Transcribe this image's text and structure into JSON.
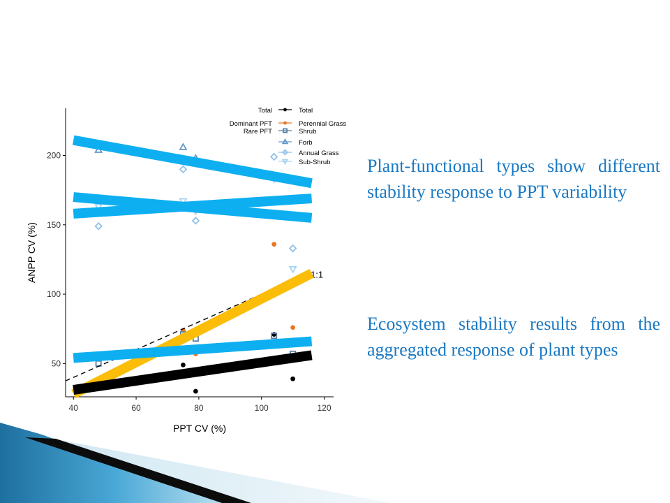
{
  "slide": {
    "paragraphs": [
      "Plant-functional types show different stability response to PPT variability",
      "Ecosystem stability results from the aggregated response of plant types"
    ],
    "text_color": "#1a78c2"
  },
  "chart_data": {
    "type": "scatter",
    "xlabel": "PPT CV (%)",
    "ylabel": "ANPP CV (%)",
    "xlim": [
      37.5,
      123
    ],
    "ylim": [
      26,
      234
    ],
    "xticks": [
      40,
      60,
      80,
      100,
      120
    ],
    "yticks": [
      50,
      100,
      150,
      200
    ],
    "grid": false,
    "legend_position": "top-right",
    "legend_groups": [
      {
        "label": "Total",
        "entries": [
          "Total"
        ]
      },
      {
        "label": "Dominant PFT",
        "entries": [
          "Perennial Grass"
        ]
      },
      {
        "label": "Rare PFT",
        "entries": [
          "Shrub",
          "Forb",
          "Annual Grass",
          "Sub-Shrub"
        ]
      }
    ],
    "series": [
      {
        "name": "Total",
        "marker": "circle-filled",
        "color": "#000000",
        "points": [
          [
            75,
            49
          ],
          [
            79,
            30
          ],
          [
            104,
            71
          ],
          [
            110,
            39
          ]
        ]
      },
      {
        "name": "Perennial Grass",
        "marker": "circle-filled",
        "color": "#e87722",
        "points": [
          [
            75,
            74
          ],
          [
            79,
            57
          ],
          [
            104,
            136
          ],
          [
            110,
            76
          ]
        ]
      },
      {
        "name": "Shrub",
        "marker": "square-open",
        "color": "#5a7fa8",
        "points": [
          [
            48,
            50
          ],
          [
            75,
            71
          ],
          [
            79,
            68
          ],
          [
            104,
            70
          ],
          [
            110,
            57
          ]
        ]
      },
      {
        "name": "Forb",
        "marker": "triangle-up-open",
        "color": "#6699cc",
        "points": [
          [
            48,
            204
          ],
          [
            75,
            206
          ],
          [
            79,
            198
          ],
          [
            104,
            185
          ],
          [
            110,
            183
          ]
        ]
      },
      {
        "name": "Annual Grass",
        "marker": "diamond-open",
        "color": "#8fc1e8",
        "points": [
          [
            48,
            149
          ],
          [
            75,
            190
          ],
          [
            79,
            153
          ],
          [
            104,
            199
          ],
          [
            110,
            133
          ]
        ]
      },
      {
        "name": "Sub-Shrub",
        "marker": "triangle-down-open",
        "color": "#a8d3f2",
        "points": [
          [
            48,
            163
          ],
          [
            75,
            167
          ],
          [
            79,
            160
          ],
          [
            104,
            183
          ],
          [
            110,
            118
          ]
        ]
      }
    ],
    "fit_lines": [
      {
        "for": "Forb",
        "color": "#0eaff0",
        "x": [
          40,
          116
        ],
        "y": [
          211,
          180
        ]
      },
      {
        "for": "Sub-Shrub",
        "color": "#0eaff0",
        "x": [
          40,
          116
        ],
        "y": [
          170,
          155
        ]
      },
      {
        "for": "Annual Grass",
        "color": "#0eaff0",
        "x": [
          40,
          116
        ],
        "y": [
          158,
          169
        ]
      },
      {
        "for": "Perennial Grass",
        "color": "#fbbd08",
        "x": [
          40,
          116
        ],
        "y": [
          28,
          115
        ]
      },
      {
        "for": "Shrub",
        "color": "#0eaff0",
        "x": [
          40,
          116
        ],
        "y": [
          54,
          66
        ]
      },
      {
        "for": "Total",
        "color": "#000000",
        "x": [
          40,
          116
        ],
        "y": [
          31,
          56
        ]
      }
    ],
    "reference_line": {
      "label": "1:1",
      "x": [
        37.5,
        115
      ],
      "y": [
        37.5,
        115
      ]
    }
  }
}
